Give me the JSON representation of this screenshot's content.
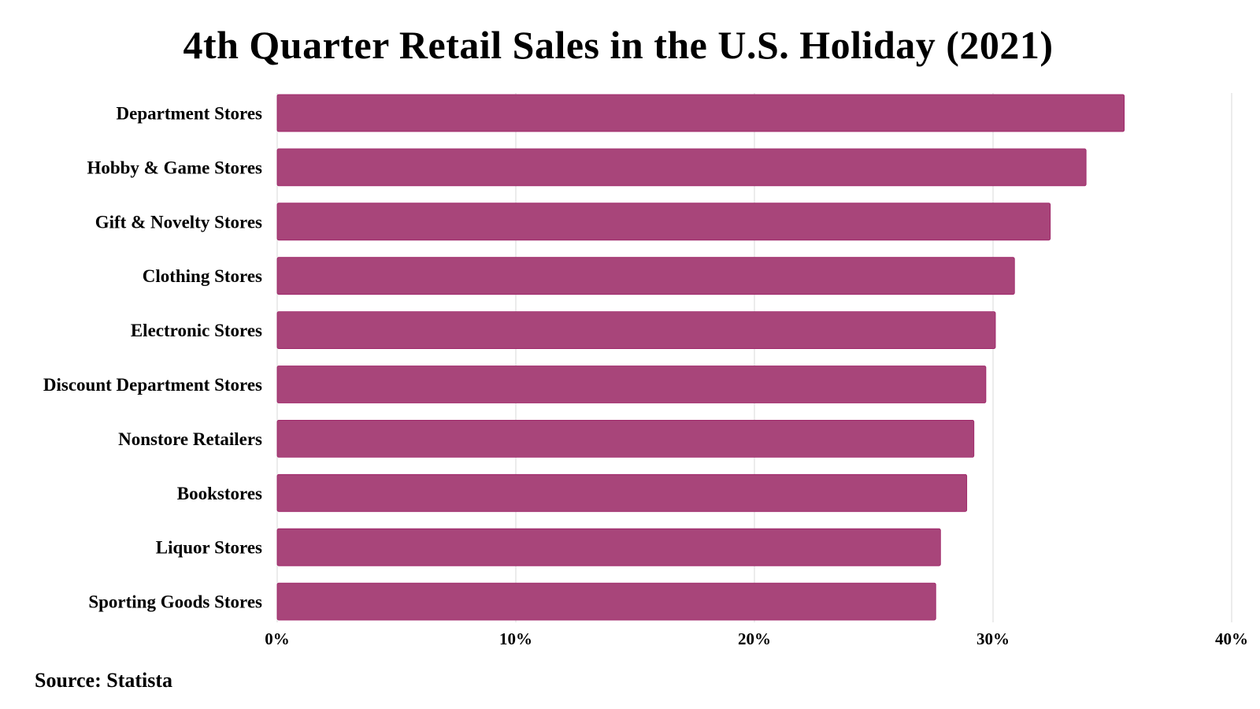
{
  "chart_data": {
    "type": "bar",
    "orientation": "horizontal",
    "title": "4th Quarter Retail Sales in the U.S. Holiday (2021)",
    "categories": [
      "Department Stores",
      "Hobby & Game Stores",
      "Gift & Novelty Stores",
      "Clothing Stores",
      "Electronic Stores",
      "Discount Department Stores",
      "Nonstore Retailers",
      "Bookstores",
      "Liquor Stores",
      "Sporting Goods Stores"
    ],
    "values": [
      35.5,
      33.9,
      32.4,
      30.9,
      30.1,
      29.7,
      29.2,
      28.9,
      27.8,
      27.6
    ],
    "xlabel": "",
    "ylabel": "",
    "xlim": [
      0,
      40
    ],
    "x_ticks": [
      0,
      10,
      20,
      30,
      40
    ],
    "x_tick_labels": [
      "0%",
      "10%",
      "20%",
      "30%",
      "40%"
    ],
    "grid": true,
    "legend": "none",
    "bar_color": "#a8457a",
    "bar_edge_color": "#9c1f64",
    "grid_color": "#e6e6e6"
  },
  "footer": {
    "source": "Source: Statista"
  }
}
